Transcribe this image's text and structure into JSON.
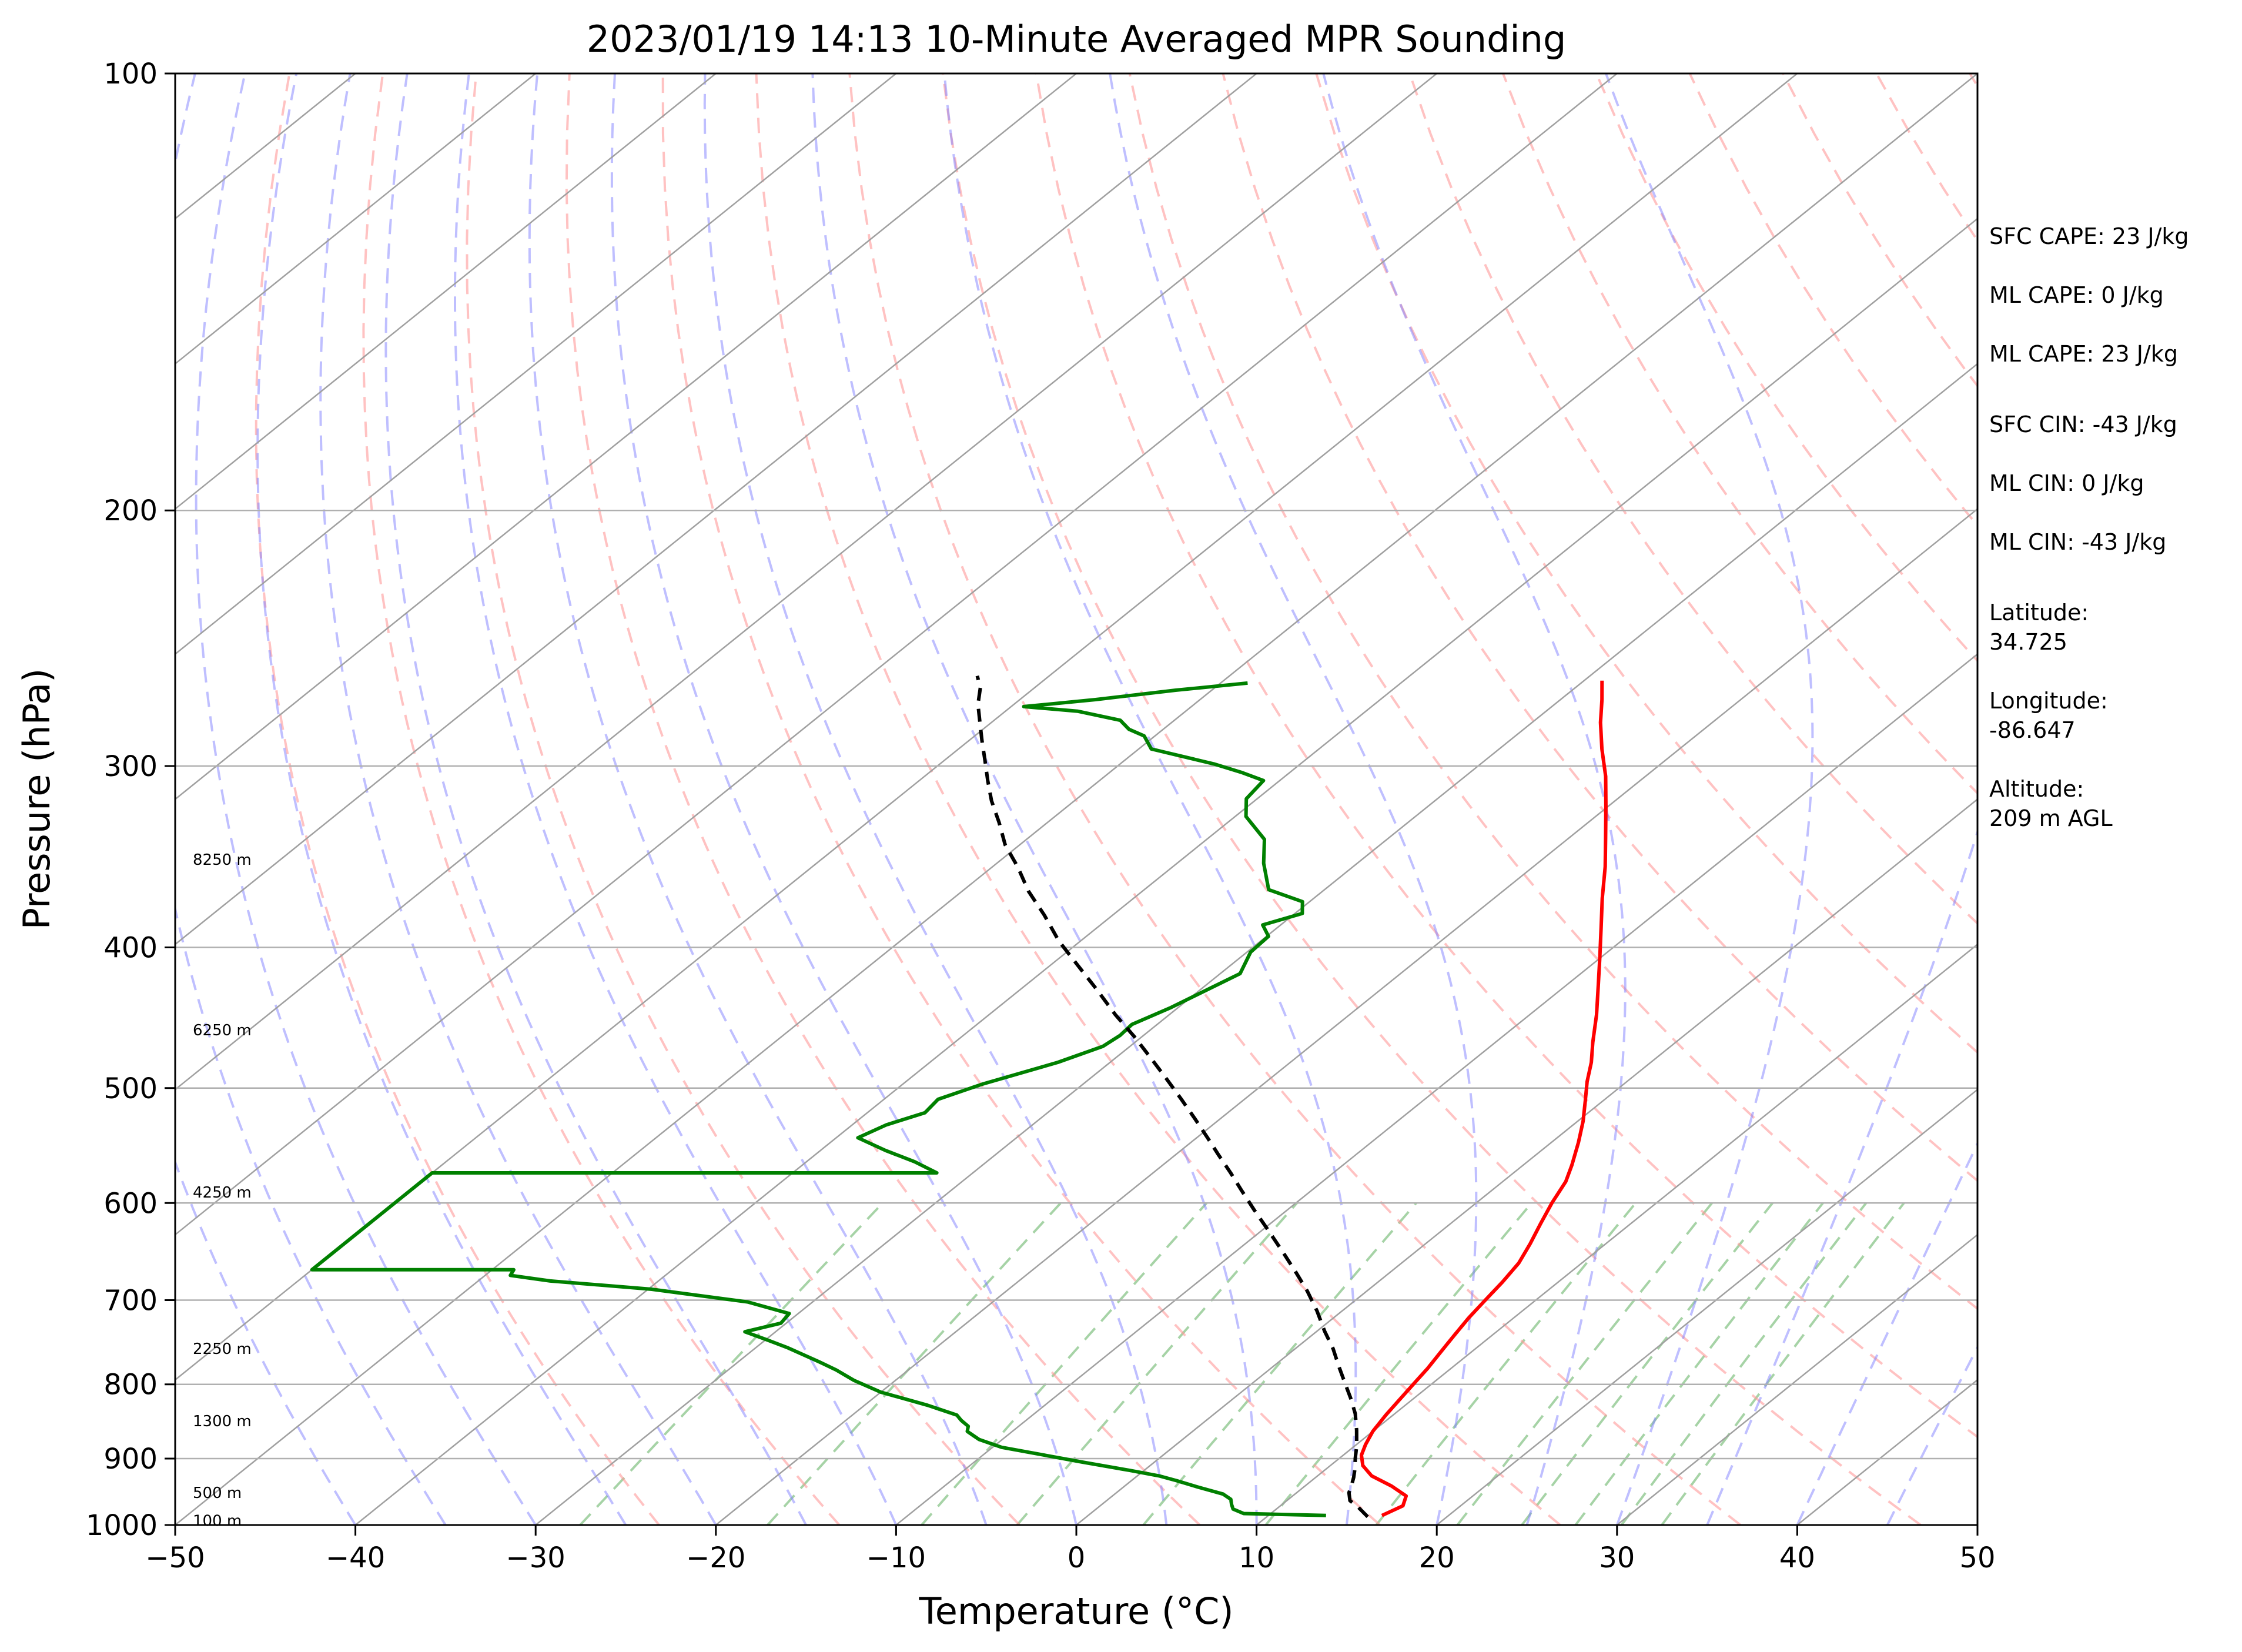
{
  "chart_data": {
    "type": "line",
    "title": "2023/01/19 14:13 10-Minute Averaged MPR Sounding",
    "xlabel": "Temperature (°C)",
    "ylabel": "Pressure (hPa)",
    "xlim": [
      -50,
      50
    ],
    "ylim": [
      1000,
      100
    ],
    "y_scale": "log",
    "x_ticks": [
      "−50",
      "−40",
      "−30",
      "−20",
      "−10",
      "0",
      "10",
      "20",
      "30",
      "40",
      "50"
    ],
    "x_tick_values": [
      -50,
      -40,
      -30,
      -20,
      -10,
      0,
      10,
      20,
      30,
      40,
      50
    ],
    "y_ticks": [
      "100",
      "200",
      "300",
      "400",
      "500",
      "600",
      "700",
      "800",
      "900",
      "1000"
    ],
    "y_tick_values": [
      100,
      200,
      300,
      400,
      500,
      600,
      700,
      800,
      900,
      1000
    ],
    "grid": true,
    "skew_per_log_decade": 100,
    "colors": {
      "temperature": "#ff0000",
      "dewpoint": "#008000",
      "parcel": "#000000",
      "isotherm": "#a0a0a0",
      "isobar": "#b0b0b0",
      "dry_adiabat": "#ff9999",
      "moist_adiabat": "#8080ff",
      "mixing_ratio": "#80c080"
    },
    "series": [
      {
        "key": "temperature",
        "points": [
          [
            16.3,
            985
          ],
          [
            16.8,
            970
          ],
          [
            16.3,
            955
          ],
          [
            14.8,
            940
          ],
          [
            13.0,
            925
          ],
          [
            11.8,
            910
          ],
          [
            11.0,
            895
          ],
          [
            10.5,
            880
          ],
          [
            10.0,
            862
          ],
          [
            9.6,
            840
          ],
          [
            9.3,
            820
          ],
          [
            9.0,
            800
          ],
          [
            8.7,
            780
          ],
          [
            8.3,
            760
          ],
          [
            7.9,
            740
          ],
          [
            7.5,
            720
          ],
          [
            7.2,
            700
          ],
          [
            6.9,
            680
          ],
          [
            6.5,
            660
          ],
          [
            5.8,
            640
          ],
          [
            5.0,
            620
          ],
          [
            4.2,
            600
          ],
          [
            3.5,
            580
          ],
          [
            2.7,
            565
          ],
          [
            1.5,
            545
          ],
          [
            0.3,
            527
          ],
          [
            -1.0,
            510
          ],
          [
            -2.2,
            495
          ],
          [
            -3.3,
            480
          ],
          [
            -4.6,
            465
          ],
          [
            -6.3,
            445
          ],
          [
            -8.2,
            425
          ],
          [
            -10.1,
            406
          ],
          [
            -12.0,
            388
          ],
          [
            -14.0,
            370
          ],
          [
            -16.0,
            352
          ],
          [
            -18.0,
            336
          ],
          [
            -20.1,
            320
          ],
          [
            -22.2,
            305
          ],
          [
            -24.3,
            292
          ],
          [
            -26.2,
            280
          ],
          [
            -27.7,
            270
          ],
          [
            -29.0,
            262
          ]
        ]
      },
      {
        "key": "dewpoint",
        "points": [
          [
            13.2,
            985
          ],
          [
            8.5,
            982
          ],
          [
            7.6,
            975
          ],
          [
            7.2,
            968
          ],
          [
            6.8,
            960
          ],
          [
            6.0,
            952
          ],
          [
            4.2,
            942
          ],
          [
            2.5,
            932
          ],
          [
            1.2,
            925
          ],
          [
            -0.8,
            917
          ],
          [
            -4.0,
            905
          ],
          [
            -6.6,
            895
          ],
          [
            -9.5,
            884
          ],
          [
            -11.3,
            873
          ],
          [
            -12.5,
            862
          ],
          [
            -12.8,
            855
          ],
          [
            -13.6,
            847
          ],
          [
            -14.2,
            840
          ],
          [
            -16.5,
            827
          ],
          [
            -20.0,
            810
          ],
          [
            -22.3,
            795
          ],
          [
            -24.0,
            782
          ],
          [
            -25.5,
            772
          ],
          [
            -28.2,
            755
          ],
          [
            -30.0,
            745
          ],
          [
            -31.7,
            736
          ],
          [
            -30.3,
            726
          ],
          [
            -30.5,
            715
          ],
          [
            -33.6,
            702
          ],
          [
            -39.8,
            688
          ],
          [
            -46.0,
            679
          ],
          [
            -48.6,
            673
          ],
          [
            -48.8,
            667
          ],
          [
            -60.0,
            667
          ],
          [
            -60.0,
            572
          ],
          [
            -32.0,
            572
          ],
          [
            -34.0,
            562
          ],
          [
            -36.4,
            552
          ],
          [
            -38.8,
            541
          ],
          [
            -38.1,
            530
          ],
          [
            -36.8,
            520
          ],
          [
            -37.0,
            509
          ],
          [
            -35.6,
            497
          ],
          [
            -32.9,
            480
          ],
          [
            -31.5,
            468
          ],
          [
            -31.3,
            460
          ],
          [
            -31.4,
            452
          ],
          [
            -30.4,
            440
          ],
          [
            -29.5,
            426
          ],
          [
            -28.9,
            417
          ],
          [
            -29.8,
            403
          ],
          [
            -29.9,
            393
          ],
          [
            -31.0,
            386
          ],
          [
            -29.6,
            379
          ],
          [
            -30.4,
            372
          ],
          [
            -33.1,
            365
          ],
          [
            -35.2,
            350
          ],
          [
            -36.8,
            337
          ],
          [
            -39.4,
            325
          ],
          [
            -40.6,
            316
          ],
          [
            -40.9,
            307
          ],
          [
            -42.7,
            303
          ],
          [
            -44.8,
            299
          ],
          [
            -49.3,
            292
          ],
          [
            -50.6,
            286
          ],
          [
            -51.9,
            283
          ],
          [
            -53.0,
            279
          ],
          [
            -56.0,
            275
          ],
          [
            -59.3,
            273
          ],
          [
            -55.8,
            270
          ],
          [
            -52.0,
            266
          ],
          [
            -48.5,
            263
          ]
        ]
      },
      {
        "key": "parcel",
        "points": [
          [
            15.6,
            987
          ],
          [
            14.4,
            972
          ],
          [
            13.5,
            962
          ],
          [
            12.9,
            950
          ],
          [
            12.5,
            938
          ],
          [
            12.1,
            927
          ],
          [
            11.6,
            915
          ],
          [
            10.9,
            900
          ],
          [
            10.1,
            882
          ],
          [
            9.0,
            860
          ],
          [
            7.8,
            838
          ],
          [
            6.5,
            818
          ],
          [
            5.1,
            798
          ],
          [
            3.6,
            777
          ],
          [
            2.1,
            756
          ],
          [
            0.4,
            735
          ],
          [
            -1.4,
            712
          ],
          [
            -3.3,
            690
          ],
          [
            -5.2,
            670
          ],
          [
            -7.3,
            649
          ],
          [
            -9.5,
            628
          ],
          [
            -11.8,
            607
          ],
          [
            -13.9,
            588
          ],
          [
            -15.7,
            572
          ],
          [
            -17.6,
            556
          ],
          [
            -19.4,
            541
          ],
          [
            -21.4,
            525
          ],
          [
            -23.5,
            509
          ],
          [
            -25.7,
            493
          ],
          [
            -28.0,
            477
          ],
          [
            -30.4,
            461
          ],
          [
            -33.0,
            445
          ],
          [
            -35.7,
            428
          ],
          [
            -38.4,
            412
          ],
          [
            -41.2,
            396
          ],
          [
            -43.8,
            380
          ],
          [
            -46.3,
            366
          ],
          [
            -48.6,
            352
          ],
          [
            -50.8,
            340
          ],
          [
            -52.7,
            328
          ],
          [
            -54.6,
            317
          ],
          [
            -56.2,
            307
          ],
          [
            -57.8,
            297
          ],
          [
            -59.3,
            288
          ],
          [
            -60.8,
            279
          ],
          [
            -62.0,
            272
          ],
          [
            -63.0,
            265
          ],
          [
            -64.0,
            260
          ]
        ]
      }
    ],
    "height_labels": [
      {
        "text": "8250 m",
        "p": 348
      },
      {
        "text": "6250 m",
        "p": 456
      },
      {
        "text": "4250 m",
        "p": 590
      },
      {
        "text": "2250 m",
        "p": 756
      },
      {
        "text": "1300 m",
        "p": 848
      },
      {
        "text": "500 m",
        "p": 950
      },
      {
        "text": "100 m",
        "p": 993
      }
    ],
    "info": {
      "sfc_cape": "SFC CAPE: 23 J/kg",
      "ml_cape_1": "ML CAPE: 0 J/kg",
      "ml_cape_2": "ML CAPE: 23 J/kg",
      "sfc_cin": "SFC CIN: -43 J/kg",
      "ml_cin_1": "ML CIN: 0 J/kg",
      "ml_cin_2": "ML CIN: -43 J/kg",
      "latitude_label": "Latitude:",
      "latitude_value": "34.725",
      "longitude_label": "Longitude:",
      "longitude_value": "-86.647",
      "altitude_label": "Altitude:",
      "altitude_value": "209 m AGL"
    }
  }
}
